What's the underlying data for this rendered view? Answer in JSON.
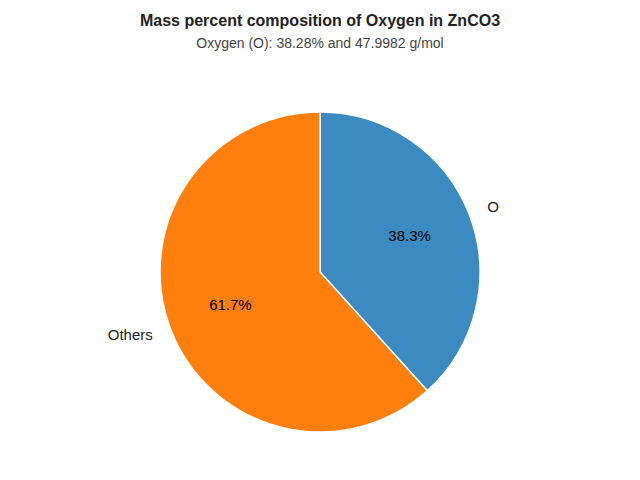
{
  "chart_data": {
    "type": "pie",
    "title": "Mass percent composition of Oxygen in ZnCO3",
    "subtitle": "Oxygen (O): 38.28% and 47.9982 g/mol",
    "categories": [
      "O",
      "Others"
    ],
    "values": [
      38.3,
      61.7
    ],
    "value_labels": [
      "38.3%",
      "61.7%"
    ],
    "data_labels": true,
    "colors": [
      "#3b8bc2",
      "#ff7f0e"
    ]
  }
}
